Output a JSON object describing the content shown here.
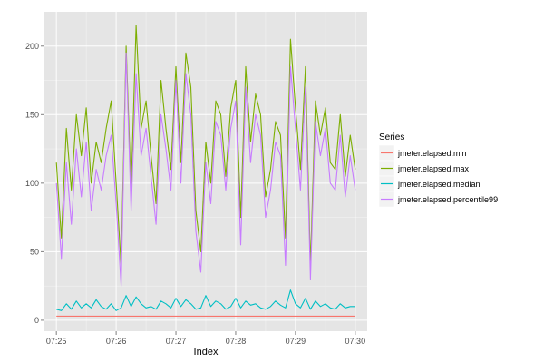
{
  "chart_data": {
    "type": "line",
    "title": "",
    "xlabel": "Index",
    "ylabel": "",
    "xlim": [
      "07:24:48",
      "07:30:12"
    ],
    "ylim": [
      -8,
      225
    ],
    "x_ticks": [
      "07:25",
      "07:26",
      "07:27",
      "07:28",
      "07:29",
      "07:30"
    ],
    "y_ticks": [
      0,
      50,
      100,
      150,
      200
    ],
    "grid": true,
    "legend": {
      "title": "Series",
      "placement": "right",
      "entries": [
        "jmeter.elapsed.min",
        "jmeter.elapsed.max",
        "jmeter.elapsed.median",
        "jmeter.elapsed.percentile99"
      ]
    },
    "colors": {
      "jmeter.elapsed.min": "#F8766D",
      "jmeter.elapsed.max": "#7CAE00",
      "jmeter.elapsed.median": "#00BFC4",
      "jmeter.elapsed.percentile99": "#C77CFF"
    },
    "series": [
      {
        "name": "jmeter.elapsed.max",
        "x": [
          "07:25:00",
          "07:25:05",
          "07:25:10",
          "07:25:15",
          "07:25:20",
          "07:25:25",
          "07:25:30",
          "07:25:35",
          "07:25:40",
          "07:25:45",
          "07:25:50",
          "07:25:55",
          "07:26:00",
          "07:26:05",
          "07:26:10",
          "07:26:15",
          "07:26:20",
          "07:26:25",
          "07:26:30",
          "07:26:35",
          "07:26:40",
          "07:26:45",
          "07:26:50",
          "07:26:55",
          "07:27:00",
          "07:27:05",
          "07:27:10",
          "07:27:15",
          "07:27:20",
          "07:27:25",
          "07:27:30",
          "07:27:35",
          "07:27:40",
          "07:27:45",
          "07:27:50",
          "07:27:55",
          "07:28:00",
          "07:28:05",
          "07:28:10",
          "07:28:15",
          "07:28:20",
          "07:28:25",
          "07:28:30",
          "07:28:35",
          "07:28:40",
          "07:28:45",
          "07:28:50",
          "07:28:55",
          "07:29:00",
          "07:29:05",
          "07:29:10",
          "07:29:15",
          "07:29:20",
          "07:29:25",
          "07:29:30",
          "07:29:35",
          "07:29:40",
          "07:29:45",
          "07:29:50",
          "07:29:55",
          "07:30:00"
        ],
        "values": [
          115,
          60,
          140,
          95,
          150,
          120,
          155,
          100,
          130,
          115,
          140,
          160,
          100,
          40,
          200,
          95,
          215,
          140,
          160,
          120,
          85,
          175,
          140,
          110,
          185,
          115,
          195,
          170,
          80,
          50,
          130,
          100,
          160,
          150,
          105,
          155,
          175,
          75,
          185,
          130,
          165,
          150,
          90,
          110,
          145,
          135,
          60,
          205,
          155,
          110,
          185,
          40,
          160,
          135,
          155,
          115,
          110,
          150,
          105,
          135,
          110
        ]
      },
      {
        "name": "jmeter.elapsed.percentile99",
        "x": [
          "07:25:00",
          "07:25:05",
          "07:25:10",
          "07:25:15",
          "07:25:20",
          "07:25:25",
          "07:25:30",
          "07:25:35",
          "07:25:40",
          "07:25:45",
          "07:25:50",
          "07:25:55",
          "07:26:00",
          "07:26:05",
          "07:26:10",
          "07:26:15",
          "07:26:20",
          "07:26:25",
          "07:26:30",
          "07:26:35",
          "07:26:40",
          "07:26:45",
          "07:26:50",
          "07:26:55",
          "07:27:00",
          "07:27:05",
          "07:27:10",
          "07:27:15",
          "07:27:20",
          "07:27:25",
          "07:27:30",
          "07:27:35",
          "07:27:40",
          "07:27:45",
          "07:27:50",
          "07:27:55",
          "07:28:00",
          "07:28:05",
          "07:28:10",
          "07:28:15",
          "07:28:20",
          "07:28:25",
          "07:28:30",
          "07:28:35",
          "07:28:40",
          "07:28:45",
          "07:28:50",
          "07:28:55",
          "07:29:00",
          "07:29:05",
          "07:29:10",
          "07:29:15",
          "07:29:20",
          "07:29:25",
          "07:29:30",
          "07:29:35",
          "07:29:40",
          "07:29:45",
          "07:29:50",
          "07:29:55",
          "07:30:00"
        ],
        "values": [
          100,
          45,
          115,
          70,
          125,
          90,
          130,
          80,
          110,
          95,
          120,
          135,
          85,
          25,
          195,
          80,
          180,
          120,
          140,
          105,
          70,
          150,
          125,
          95,
          175,
          100,
          180,
          150,
          65,
          35,
          115,
          85,
          145,
          135,
          95,
          140,
          160,
          55,
          170,
          115,
          150,
          135,
          75,
          95,
          130,
          120,
          40,
          185,
          140,
          95,
          170,
          30,
          145,
          120,
          140,
          100,
          95,
          135,
          90,
          120,
          95
        ]
      },
      {
        "name": "jmeter.elapsed.median",
        "x": [
          "07:25:00",
          "07:25:05",
          "07:25:10",
          "07:25:15",
          "07:25:20",
          "07:25:25",
          "07:25:30",
          "07:25:35",
          "07:25:40",
          "07:25:45",
          "07:25:50",
          "07:25:55",
          "07:26:00",
          "07:26:05",
          "07:26:10",
          "07:26:15",
          "07:26:20",
          "07:26:25",
          "07:26:30",
          "07:26:35",
          "07:26:40",
          "07:26:45",
          "07:26:50",
          "07:26:55",
          "07:27:00",
          "07:27:05",
          "07:27:10",
          "07:27:15",
          "07:27:20",
          "07:27:25",
          "07:27:30",
          "07:27:35",
          "07:27:40",
          "07:27:45",
          "07:27:50",
          "07:27:55",
          "07:28:00",
          "07:28:05",
          "07:28:10",
          "07:28:15",
          "07:28:20",
          "07:28:25",
          "07:28:30",
          "07:28:35",
          "07:28:40",
          "07:28:45",
          "07:28:50",
          "07:28:55",
          "07:29:00",
          "07:29:05",
          "07:29:10",
          "07:29:15",
          "07:29:20",
          "07:29:25",
          "07:29:30",
          "07:29:35",
          "07:29:40",
          "07:29:45",
          "07:29:50",
          "07:29:55",
          "07:30:00"
        ],
        "values": [
          8,
          7,
          12,
          8,
          14,
          9,
          12,
          9,
          15,
          10,
          8,
          12,
          7,
          9,
          18,
          10,
          17,
          12,
          9,
          10,
          8,
          14,
          12,
          9,
          16,
          10,
          15,
          12,
          8,
          9,
          18,
          10,
          14,
          12,
          8,
          10,
          16,
          9,
          14,
          11,
          12,
          9,
          8,
          10,
          14,
          11,
          9,
          22,
          12,
          9,
          16,
          8,
          14,
          10,
          12,
          9,
          8,
          12,
          9,
          10,
          10
        ]
      },
      {
        "name": "jmeter.elapsed.min",
        "x": [
          "07:25:00",
          "07:25:30",
          "07:26:00",
          "07:26:30",
          "07:27:00",
          "07:27:30",
          "07:28:00",
          "07:28:30",
          "07:29:00",
          "07:29:30",
          "07:30:00"
        ],
        "values": [
          3,
          3,
          3,
          3,
          3,
          3,
          3,
          3,
          3,
          3,
          3
        ]
      }
    ]
  }
}
